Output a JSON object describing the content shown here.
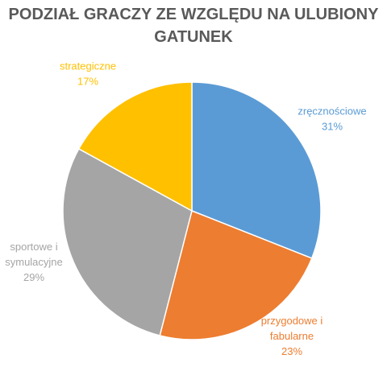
{
  "chart_data": {
    "type": "pie",
    "title_lines": [
      "PODZIAŁ GRACZY ZE WZGLĘDU NA ULUBIONY",
      "GATUNEK"
    ],
    "start_angle_deg": 0,
    "direction": "clockwise",
    "slices": [
      {
        "category": "zręcznościowe",
        "label_lines": [
          "zręcznościowe"
        ],
        "value": 31,
        "value_label": "31%",
        "color": "#5B9BD5"
      },
      {
        "category": "przygodowe i fabularne",
        "label_lines": [
          "przygodowe i",
          "fabularne"
        ],
        "value": 23,
        "value_label": "23%",
        "color": "#ED7D31"
      },
      {
        "category": "sportowe i symulacyjne",
        "label_lines": [
          "sportowe i",
          "symulacyjne"
        ],
        "value": 29,
        "value_label": "29%",
        "color": "#A5A5A5"
      },
      {
        "category": "strategiczne",
        "label_lines": [
          "strategiczne"
        ],
        "value": 17,
        "value_label": "17%",
        "color": "#FFC000"
      }
    ],
    "legend": "none"
  },
  "colors": {
    "title": "#595959",
    "background": "#FFFFFF",
    "slice_border": "#FFFFFF"
  }
}
